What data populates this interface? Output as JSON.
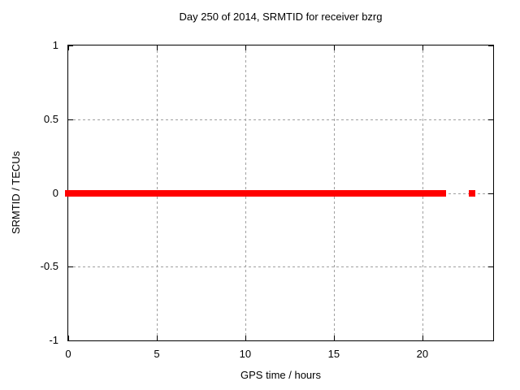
{
  "chart_data": {
    "type": "scatter",
    "title": "Day 250 of 2014, SRMTID for receiver bzrg",
    "xlabel": "GPS time / hours",
    "ylabel": "SRMTID / TECUs",
    "xlim": [
      0,
      24
    ],
    "ylim": [
      -1,
      1
    ],
    "xticks": [
      0,
      5,
      10,
      15,
      20
    ],
    "yticks": [
      -1,
      -0.5,
      0,
      0.5,
      1
    ],
    "grid": true,
    "legend_position": "none",
    "marker": "filled-square",
    "marker_size_px": 8,
    "colors": {
      "marker": "#ff0000",
      "grid": "#a0a0a0",
      "border": "#000000",
      "text": "#000000",
      "background": "#ffffff"
    },
    "series": [
      {
        "name": "SRMTID",
        "y_units": "TECUs",
        "segments": [
          {
            "x_start": 0.0,
            "x_end": 21.15,
            "y": 0.0,
            "description": "dense contiguous run of points at SRMTID = 0"
          },
          {
            "x_start": 22.8,
            "x_end": 22.8,
            "y": 0.0,
            "description": "isolated point at SRMTID = 0"
          }
        ]
      }
    ]
  }
}
